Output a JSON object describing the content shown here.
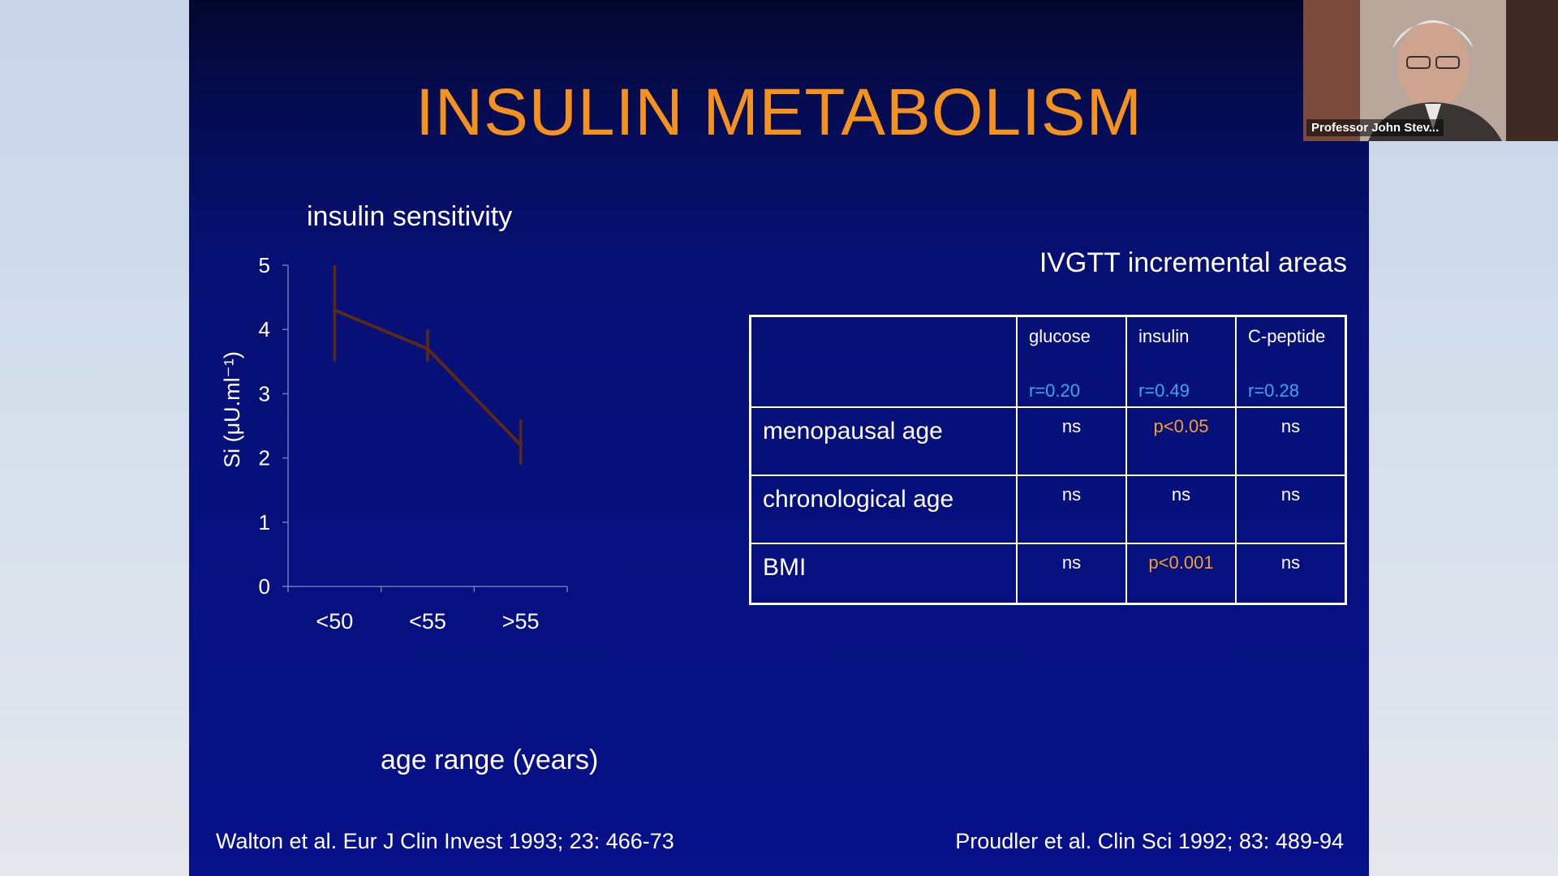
{
  "slide": {
    "title": "INSULIN METABOLISM",
    "ref_left": "Walton et al. Eur J Clin Invest 1993; 23: 466-73",
    "ref_right": "Proudler et al. Clin Sci 1992; 83: 489-94"
  },
  "chart_data": {
    "type": "line",
    "title": "insulin sensitivity",
    "xlabel": "age range (years)",
    "ylabel": "Si (μU.ml⁻¹)",
    "categories": [
      "<50",
      "<55",
      ">55"
    ],
    "values": [
      4.3,
      3.7,
      2.2
    ],
    "error_low": [
      3.5,
      3.5,
      1.9
    ],
    "error_high": [
      5.0,
      4.0,
      2.6
    ],
    "ylim": [
      0,
      5
    ],
    "yticks": [
      "0",
      "1",
      "2",
      "3",
      "4",
      "5"
    ],
    "line_color": "#5a2a14",
    "grid": false
  },
  "table": {
    "title": "IVGTT incremental areas",
    "columns": [
      {
        "name": "glucose",
        "r": "r=0.20"
      },
      {
        "name": "insulin",
        "r": "r=0.49"
      },
      {
        "name": "C-peptide",
        "r": "r=0.28"
      }
    ],
    "rows": [
      {
        "label": "menopausal age",
        "values": [
          "ns",
          "p<0.05",
          "ns"
        ]
      },
      {
        "label": "chronological age",
        "values": [
          "ns",
          "ns",
          "ns"
        ]
      },
      {
        "label": "BMI",
        "values": [
          "ns",
          "p<0.001",
          "ns"
        ]
      }
    ]
  },
  "video": {
    "participant_name": "Professor John Stev..."
  },
  "colors": {
    "title": "#f4921d",
    "r_value": "#3aa7e8",
    "highlight": "#f4a02a"
  }
}
